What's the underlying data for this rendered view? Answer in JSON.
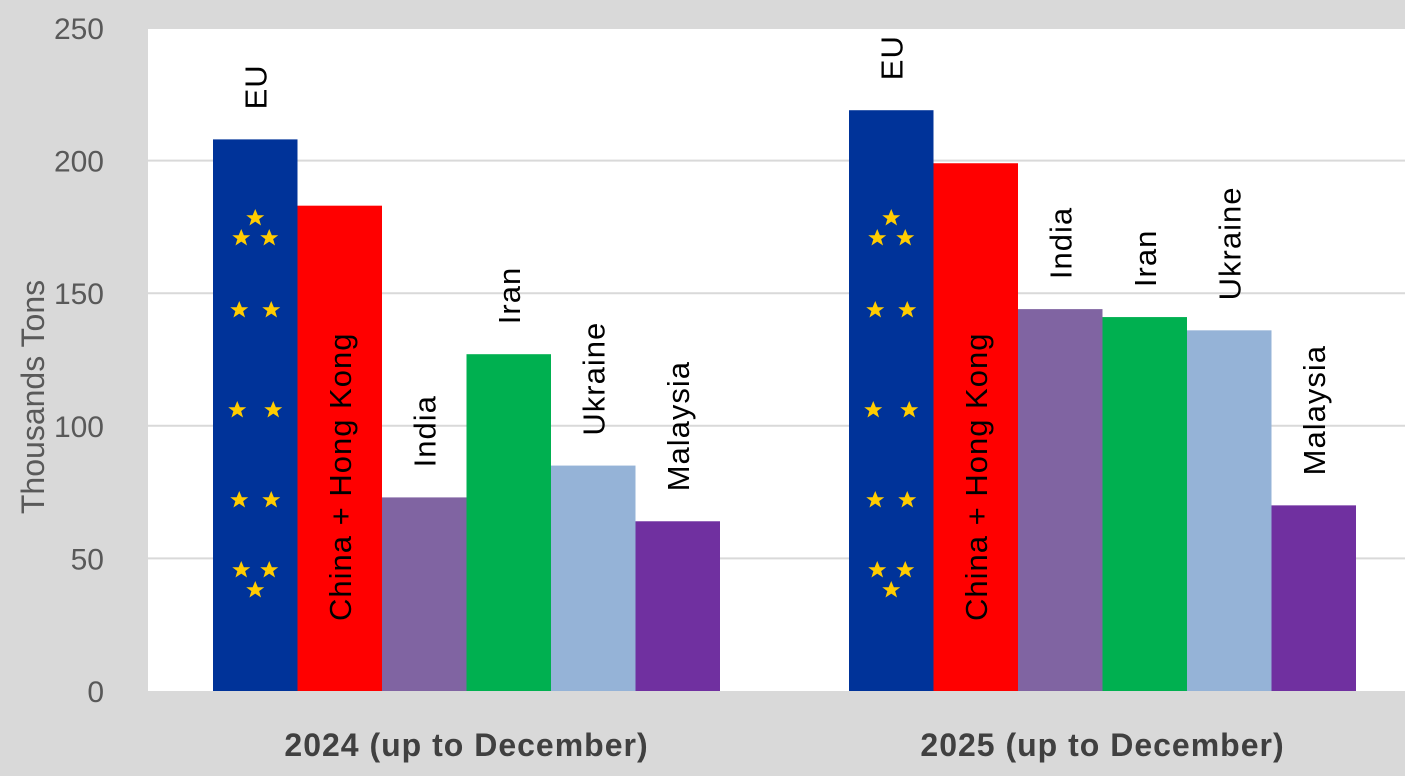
{
  "chart_data": {
    "type": "bar",
    "categories": [
      "2024 (up to December)",
      "2025 (up to December)"
    ],
    "series": [
      {
        "name": "EU",
        "values": [
          208,
          219
        ],
        "color": "#003399",
        "label_color": "#000000",
        "label_position": "above",
        "pattern": "eu-stars"
      },
      {
        "name": "China + Hong Kong",
        "values": [
          183,
          199
        ],
        "color": "#ff0000",
        "label_color": "#000000",
        "label_position": "inside"
      },
      {
        "name": "India",
        "values": [
          73,
          144
        ],
        "color": "#8064a2",
        "label_color": "#000000",
        "label_position": "above"
      },
      {
        "name": "Iran",
        "values": [
          127,
          141
        ],
        "color": "#00b050",
        "label_color": "#000000",
        "label_position": "above"
      },
      {
        "name": "Ukraine",
        "values": [
          85,
          136
        ],
        "color": "#95b3d7",
        "label_color": "#000000",
        "label_position": "above"
      },
      {
        "name": "Malaysia",
        "values": [
          64,
          70
        ],
        "color": "#7030a0",
        "label_color": "#000000",
        "label_position": "above"
      }
    ],
    "ylabel": "Thousands Tons",
    "ylim": [
      0,
      250
    ],
    "yticks": [
      0,
      50,
      100,
      150,
      200,
      250
    ],
    "grid": true,
    "legend": "none"
  }
}
